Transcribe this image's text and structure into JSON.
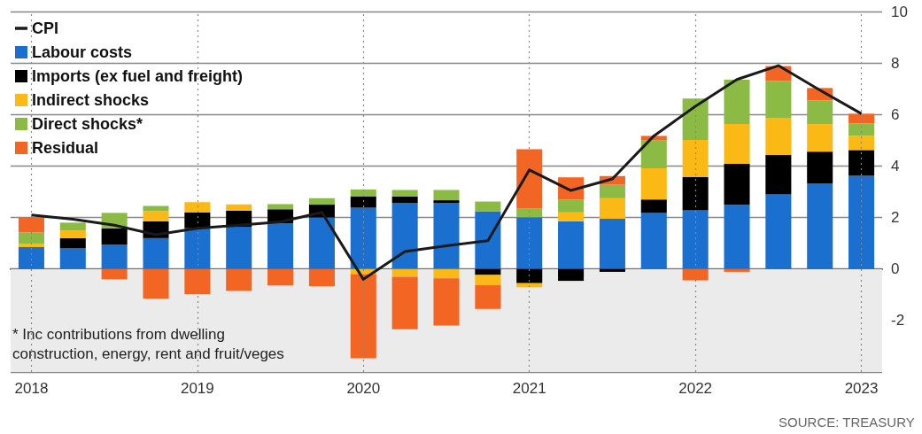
{
  "chart_data": {
    "type": "bar",
    "stacked": true,
    "legend": "top left",
    "grid": true,
    "marker": "none",
    "categories": [
      "2018",
      null,
      null,
      null,
      "2019",
      null,
      null,
      null,
      "2020",
      null,
      null,
      null,
      "2021",
      null,
      null,
      null,
      "2022",
      null,
      null,
      null,
      "2023"
    ],
    "series": [
      {
        "name": "CPI",
        "type": "line",
        "color": "#1a1a1a",
        "values": [
          2.1,
          1.93,
          1.7,
          1.33,
          1.58,
          1.7,
          1.83,
          2.2,
          -0.4,
          0.68,
          0.9,
          1.1,
          3.85,
          3.05,
          3.5,
          5.17,
          6.32,
          7.36,
          7.9,
          6.95,
          6.03
        ]
      },
      {
        "name": "Labour costs",
        "color": "#1a6fcf",
        "values": [
          0.85,
          0.8,
          0.94,
          1.2,
          1.58,
          1.64,
          1.77,
          2.0,
          2.38,
          2.57,
          2.57,
          2.24,
          2.01,
          1.86,
          1.95,
          2.18,
          2.28,
          2.49,
          2.9,
          3.33,
          3.62
        ]
      },
      {
        "name": "Imports (ex fuel and freight)",
        "color": "#000000",
        "values": [
          null,
          0.4,
          0.64,
          0.65,
          0.62,
          0.62,
          0.55,
          0.5,
          0.43,
          0.25,
          0.1,
          -0.23,
          -0.55,
          -0.46,
          -0.11,
          0.52,
          1.29,
          1.59,
          1.53,
          1.23,
          1.0
        ]
      },
      {
        "name": "Indirect shocks",
        "color": "#fbb916",
        "values": [
          0.12,
          0.3,
          null,
          0.4,
          0.4,
          0.25,
          null,
          null,
          -0.2,
          -0.3,
          -0.36,
          -0.4,
          -0.16,
          0.34,
          0.8,
          1.21,
          1.44,
          1.55,
          1.44,
          1.07,
          0.55
        ]
      },
      {
        "name": "Direct shocks*",
        "color": "#8cbb45",
        "values": [
          0.45,
          0.3,
          0.6,
          0.2,
          null,
          null,
          0.2,
          0.25,
          0.28,
          0.25,
          0.4,
          0.38,
          0.34,
          0.5,
          0.52,
          1.09,
          1.61,
          1.72,
          1.44,
          0.92,
          0.48
        ]
      },
      {
        "name": "Residual",
        "color": "#f26522",
        "values": [
          0.6,
          null,
          -0.4,
          -1.15,
          -0.98,
          -0.85,
          -0.64,
          -0.67,
          -3.27,
          -2.04,
          -1.83,
          -0.92,
          2.3,
          0.86,
          0.34,
          0.17,
          -0.44,
          -0.11,
          0.57,
          0.48,
          0.38
        ]
      }
    ],
    "ylim": [
      -4,
      10
    ],
    "yticks": [
      {
        "value": -4,
        "label": null
      },
      -2,
      0,
      2,
      4,
      6,
      8,
      10
    ],
    "bands": [
      {
        "axis": "y",
        "from": -4,
        "to": 0,
        "color": "#ebebeb"
      }
    ],
    "annotations": [
      "* Inc contributions from dwelling construction, energy, rent and fruit/veges",
      "SOURCE: TREASURY"
    ]
  }
}
